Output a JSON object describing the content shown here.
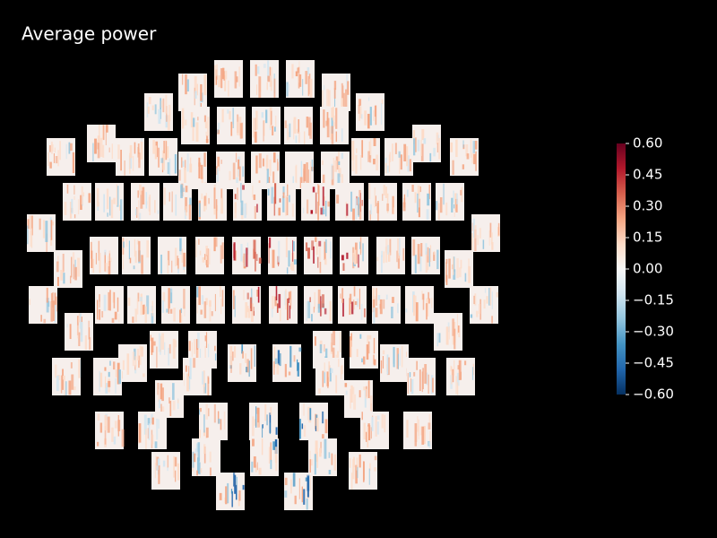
{
  "chart_data": {
    "type": "topo",
    "title": "Average power",
    "colormap": [
      "#053061",
      "#2166ac",
      "#4393c3",
      "#92c5de",
      "#d1e5f0",
      "#f7f7f7",
      "#fddbc7",
      "#f4a582",
      "#d6604d",
      "#b2182b",
      "#67001f"
    ],
    "ylim": [
      -0.6,
      0.6
    ],
    "yticks": [
      {
        "value": 0.6,
        "label": "0.60"
      },
      {
        "value": 0.45,
        "label": "0.45"
      },
      {
        "value": 0.3,
        "label": "0.30"
      },
      {
        "value": 0.15,
        "label": "0.15"
      },
      {
        "value": 0,
        "label": "0.00"
      },
      {
        "value": -0.15,
        "label": "−0.15"
      },
      {
        "value": -0.3,
        "label": "−0.30"
      },
      {
        "value": -0.45,
        "label": "−0.45"
      },
      {
        "value": -0.6,
        "label": "−0.60"
      }
    ]
  }
}
